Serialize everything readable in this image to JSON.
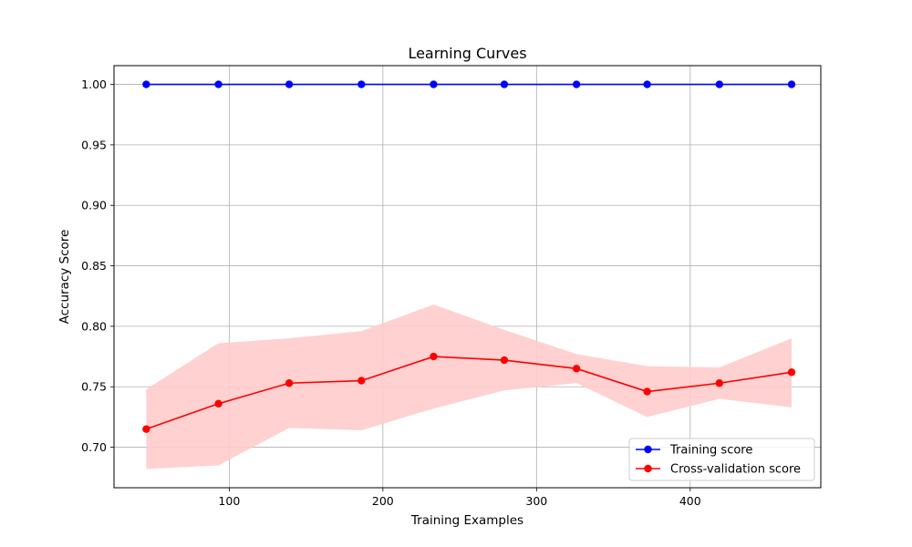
{
  "chart_data": {
    "type": "line",
    "title": "Learning Curves",
    "xlabel": "Training Examples",
    "ylabel": "Accuracy Score",
    "xlim": [
      25,
      485
    ],
    "ylim": [
      0.6665,
      1.0155
    ],
    "xticks": [
      100,
      200,
      300,
      400
    ],
    "yticks": [
      0.7,
      0.75,
      0.8,
      0.85,
      0.9,
      0.95,
      1.0
    ],
    "grid": true,
    "legend_position": "lower-right",
    "x": [
      46,
      93,
      139,
      186,
      233,
      279,
      326,
      372,
      419,
      466
    ],
    "series": [
      {
        "name": "Training score",
        "color": "#0000ff",
        "values": [
          1.0,
          1.0,
          1.0,
          1.0,
          1.0,
          1.0,
          1.0,
          1.0,
          1.0,
          1.0
        ],
        "band_lower": [
          1.0,
          1.0,
          1.0,
          1.0,
          1.0,
          1.0,
          1.0,
          1.0,
          1.0,
          1.0
        ],
        "band_upper": [
          1.0,
          1.0,
          1.0,
          1.0,
          1.0,
          1.0,
          1.0,
          1.0,
          1.0,
          1.0
        ]
      },
      {
        "name": "Cross-validation score",
        "color": "#ff0000",
        "band_color": "#ffcccc",
        "values": [
          0.715,
          0.736,
          0.753,
          0.755,
          0.775,
          0.772,
          0.765,
          0.746,
          0.753,
          0.762
        ],
        "band_lower": [
          0.682,
          0.685,
          0.716,
          0.714,
          0.732,
          0.747,
          0.753,
          0.725,
          0.74,
          0.733
        ],
        "band_upper": [
          0.748,
          0.786,
          0.79,
          0.796,
          0.818,
          0.797,
          0.777,
          0.767,
          0.766,
          0.79
        ]
      }
    ]
  }
}
